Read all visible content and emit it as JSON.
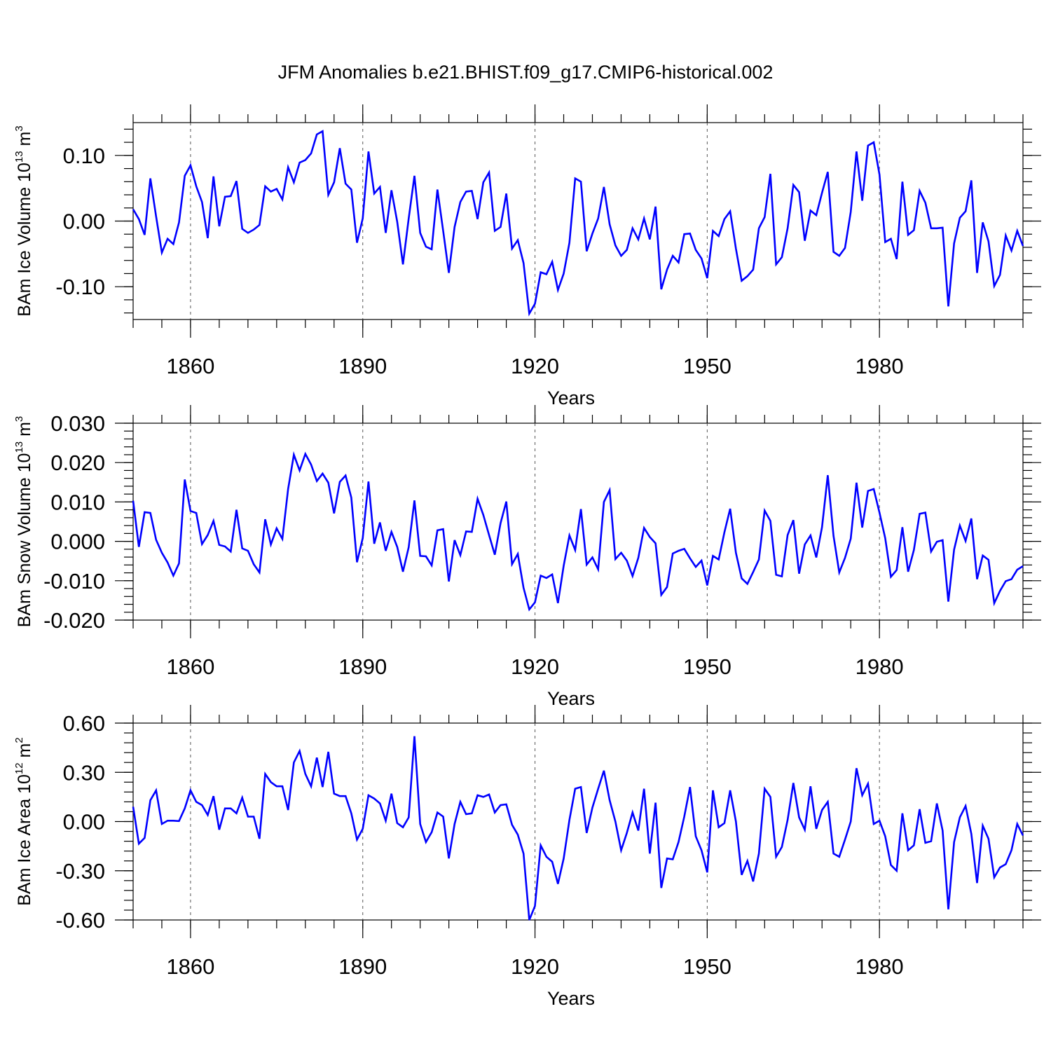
{
  "figure": {
    "title": "JFM Anomalies b.e21.BHIST.f09_g17.CMIP6-historical.002"
  },
  "chart_data": [
    {
      "type": "line",
      "name": "ice-volume",
      "title": "JFM Anomalies b.e21.BHIST.f09_g17.CMIP6-historical.002",
      "xlabel": "Years",
      "ylabel": {
        "main": "BAm Ice Volume 10",
        "exp": "13",
        "unit": " m",
        "unit_exp": "3"
      },
      "xlim": [
        1850,
        2005
      ],
      "ylim": [
        -0.15,
        0.15
      ],
      "xticks": [
        1860,
        1890,
        1920,
        1950,
        1980
      ],
      "xtick_labels": [
        "1860",
        "1890",
        "1920",
        "1950",
        "1980"
      ],
      "yticks": [
        -0.1,
        0.0,
        0.1
      ],
      "ytick_labels": [
        "-0.10",
        "0.00",
        "0.10"
      ],
      "y_minor_step": 0.02,
      "x_minor_step": 5,
      "dashed_gridlines_x": [
        1860,
        1890,
        1920,
        1950,
        1980
      ],
      "color": "#0000ff",
      "x_start": 1850,
      "values": [
        0.018,
        0.003,
        -0.021,
        0.065,
        0.007,
        -0.048,
        -0.027,
        -0.035,
        -0.002,
        0.069,
        0.085,
        0.053,
        0.029,
        -0.026,
        0.068,
        -0.008,
        0.037,
        0.038,
        0.061,
        -0.012,
        -0.018,
        -0.013,
        -0.006,
        0.053,
        0.045,
        0.049,
        0.033,
        0.082,
        0.059,
        0.089,
        0.093,
        0.103,
        0.132,
        0.137,
        0.04,
        0.059,
        0.111,
        0.057,
        0.048,
        -0.033,
        0.004,
        0.106,
        0.042,
        0.052,
        -0.018,
        0.047,
        -0.001,
        -0.066,
        0.004,
        0.069,
        -0.018,
        -0.039,
        -0.043,
        0.048,
        -0.015,
        -0.079,
        -0.009,
        0.029,
        0.045,
        0.046,
        0.003,
        0.059,
        0.074,
        -0.015,
        -0.009,
        0.042,
        -0.042,
        -0.029,
        -0.064,
        -0.141,
        -0.126,
        -0.078,
        -0.081,
        -0.062,
        -0.105,
        -0.08,
        -0.033,
        0.065,
        0.06,
        -0.046,
        -0.019,
        0.004,
        0.052,
        -0.005,
        -0.037,
        -0.053,
        -0.044,
        -0.011,
        -0.028,
        0.004,
        -0.028,
        0.022,
        -0.104,
        -0.074,
        -0.053,
        -0.063,
        -0.02,
        -0.019,
        -0.044,
        -0.057,
        -0.087,
        -0.015,
        -0.023,
        0.003,
        0.015,
        -0.042,
        -0.091,
        -0.084,
        -0.074,
        -0.011,
        0.006,
        0.072,
        -0.066,
        -0.055,
        -0.011,
        0.055,
        0.044,
        -0.03,
        0.016,
        0.009,
        0.043,
        0.075,
        -0.047,
        -0.053,
        -0.041,
        0.014,
        0.106,
        0.031,
        0.115,
        0.12,
        0.071,
        -0.032,
        -0.027,
        -0.058,
        0.06,
        -0.021,
        -0.014,
        0.046,
        0.028,
        -0.011,
        -0.011,
        -0.01,
        -0.13,
        -0.034,
        0.005,
        0.015,
        0.062,
        -0.079,
        -0.002,
        -0.031,
        -0.099,
        -0.082,
        -0.022,
        -0.045,
        -0.015,
        -0.038
      ]
    },
    {
      "type": "line",
      "name": "snow-volume",
      "xlabel": "Years",
      "ylabel": {
        "main": "BAm Snow Volume 10",
        "exp": "13",
        "unit": " m",
        "unit_exp": "3"
      },
      "xlim": [
        1850,
        2005
      ],
      "ylim": [
        -0.02,
        0.03
      ],
      "xticks": [
        1860,
        1890,
        1920,
        1950,
        1980
      ],
      "xtick_labels": [
        "1860",
        "1890",
        "1920",
        "1950",
        "1980"
      ],
      "yticks": [
        -0.02,
        -0.01,
        0.0,
        0.01,
        0.02,
        0.03
      ],
      "ytick_labels": [
        "-0.020",
        "-0.010",
        "0.000",
        "0.010",
        "0.020",
        "0.030"
      ],
      "y_minor_step": 0.002,
      "x_minor_step": 5,
      "dashed_gridlines_x": [
        1860,
        1890,
        1920,
        1950,
        1980
      ],
      "color": "#0000ff",
      "x_start": 1850,
      "values": [
        0.0103,
        -0.0014,
        0.0074,
        0.0072,
        0.0004,
        -0.0029,
        -0.0054,
        -0.0087,
        -0.0056,
        0.0157,
        0.0077,
        0.0072,
        -0.0007,
        0.0016,
        0.0052,
        -0.0009,
        -0.0013,
        -0.0026,
        0.008,
        -0.0018,
        -0.0024,
        -0.0058,
        -0.0079,
        0.0056,
        -0.0008,
        0.0033,
        0.0006,
        0.0133,
        0.022,
        0.018,
        0.0222,
        0.0195,
        0.0153,
        0.0172,
        0.0149,
        0.0071,
        0.0151,
        0.0167,
        0.0111,
        -0.0053,
        0.0008,
        0.0152,
        -0.0006,
        0.0048,
        -0.0024,
        0.0024,
        -0.0014,
        -0.0077,
        -0.0015,
        0.0104,
        -0.0037,
        -0.0038,
        -0.0061,
        0.0028,
        0.0031,
        -0.0102,
        0.0003,
        -0.0035,
        0.0025,
        0.0024,
        0.0108,
        0.0067,
        0.0016,
        -0.0034,
        0.0046,
        0.0101,
        -0.0058,
        -0.0032,
        -0.0118,
        -0.0173,
        -0.0155,
        -0.0087,
        -0.0093,
        -0.0084,
        -0.0157,
        -0.0062,
        0.0015,
        -0.0022,
        0.0082,
        -0.0059,
        -0.0041,
        -0.0071,
        0.01,
        0.013,
        -0.0045,
        -0.0029,
        -0.0049,
        -0.0088,
        -0.0042,
        0.0034,
        0.0011,
        -0.0005,
        -0.0136,
        -0.0116,
        -0.0031,
        -0.0024,
        -0.0019,
        -0.0043,
        -0.0065,
        -0.0049,
        -0.0112,
        -0.0037,
        -0.0046,
        0.0023,
        0.0083,
        -0.0029,
        -0.0094,
        -0.0108,
        -0.0078,
        -0.0046,
        0.0078,
        0.0052,
        -0.0085,
        -0.0089,
        0.0016,
        0.0054,
        -0.0082,
        -0.0008,
        0.0015,
        -0.0041,
        0.0036,
        0.0168,
        0.0014,
        -0.0079,
        -0.0042,
        0.0007,
        0.0149,
        0.0035,
        0.0128,
        0.0133,
        0.0073,
        0.0008,
        -0.009,
        -0.0073,
        0.0036,
        -0.0077,
        -0.0022,
        0.007,
        0.0073,
        -0.0026,
        -0.0001,
        0.0003,
        -0.0153,
        -0.0021,
        0.004,
        0.0001,
        0.0058,
        -0.0096,
        -0.0036,
        -0.0047,
        -0.0157,
        -0.0126,
        -0.0101,
        -0.0096,
        -0.0072,
        -0.0063
      ]
    },
    {
      "type": "line",
      "name": "ice-area",
      "xlabel": "Years",
      "ylabel": {
        "main": "BAm Ice Area 10",
        "exp": "12",
        "unit": " m",
        "unit_exp": "2"
      },
      "xlim": [
        1850,
        2005
      ],
      "ylim": [
        -0.6,
        0.6
      ],
      "xticks": [
        1860,
        1890,
        1920,
        1950,
        1980
      ],
      "xtick_labels": [
        "1860",
        "1890",
        "1920",
        "1950",
        "1980"
      ],
      "yticks": [
        -0.6,
        -0.3,
        0.0,
        0.3,
        0.6
      ],
      "ytick_labels": [
        "-0.60",
        "-0.30",
        "0.00",
        "0.30",
        "0.60"
      ],
      "y_minor_step": 0.06,
      "x_minor_step": 5,
      "dashed_gridlines_x": [
        1860,
        1890,
        1920,
        1950,
        1980
      ],
      "color": "#0000ff",
      "x_start": 1850,
      "values": [
        0.09,
        -0.135,
        -0.1,
        0.13,
        0.19,
        -0.015,
        0.005,
        0.005,
        0.003,
        0.08,
        0.19,
        0.12,
        0.1,
        0.04,
        0.155,
        -0.05,
        0.08,
        0.08,
        0.05,
        0.145,
        0.03,
        0.03,
        -0.105,
        0.29,
        0.24,
        0.215,
        0.215,
        0.07,
        0.36,
        0.43,
        0.29,
        0.215,
        0.39,
        0.21,
        0.425,
        0.17,
        0.155,
        0.155,
        0.05,
        -0.11,
        -0.045,
        0.16,
        0.14,
        0.11,
        0.005,
        0.17,
        -0.01,
        -0.035,
        0.025,
        0.52,
        -0.015,
        -0.125,
        -0.065,
        0.055,
        0.03,
        -0.225,
        -0.015,
        0.12,
        0.045,
        0.05,
        0.16,
        0.15,
        0.165,
        0.055,
        0.1,
        0.105,
        -0.02,
        -0.08,
        -0.195,
        -0.6,
        -0.515,
        -0.145,
        -0.215,
        -0.245,
        -0.38,
        -0.225,
        0.01,
        0.2,
        0.21,
        -0.07,
        0.085,
        0.2,
        0.31,
        0.13,
        0.0,
        -0.175,
        -0.07,
        0.055,
        -0.055,
        0.2,
        -0.195,
        0.115,
        -0.405,
        -0.225,
        -0.23,
        -0.125,
        0.03,
        0.21,
        -0.09,
        -0.175,
        -0.31,
        0.19,
        -0.035,
        -0.01,
        0.19,
        0.0,
        -0.325,
        -0.24,
        -0.365,
        -0.195,
        0.2,
        0.15,
        -0.215,
        -0.155,
        0.01,
        0.235,
        0.025,
        -0.05,
        0.215,
        -0.045,
        0.07,
        0.12,
        -0.195,
        -0.215,
        -0.11,
        0.0,
        0.325,
        0.16,
        0.23,
        -0.015,
        0.005,
        -0.09,
        -0.265,
        -0.3,
        0.05,
        -0.175,
        -0.145,
        0.075,
        -0.13,
        -0.12,
        0.11,
        -0.055,
        -0.535,
        -0.125,
        0.025,
        0.095,
        -0.075,
        -0.375,
        -0.025,
        -0.105,
        -0.34,
        -0.28,
        -0.26,
        -0.175,
        -0.015,
        -0.085
      ]
    }
  ]
}
